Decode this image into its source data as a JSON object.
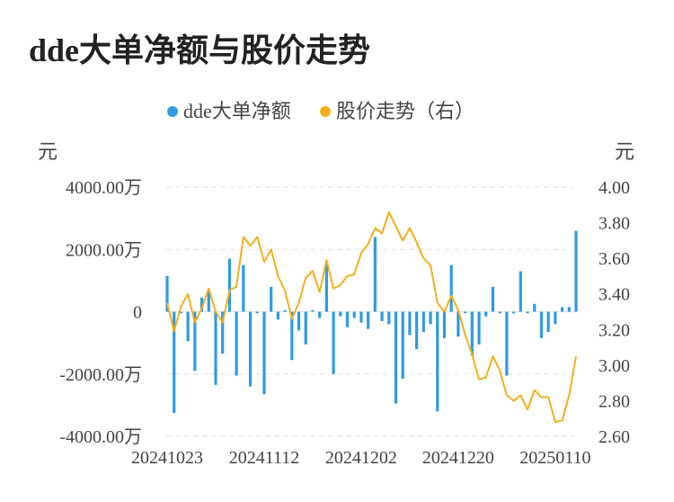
{
  "chart_data": {
    "type": "bar+line",
    "title": "dde大单净额与股价走势",
    "legend": {
      "placement": "top-center",
      "items": [
        {
          "label": "dde大单净额",
          "color": "#2f9be0"
        },
        {
          "label": "股价走势（右）",
          "color": "#f2b01e"
        }
      ]
    },
    "left_unit": "元",
    "right_unit": "元",
    "left_axis": {
      "ylim": [
        -4000,
        4000
      ],
      "ticks": [
        "4000.00万",
        "2000.00万",
        "0",
        "-2000.00万",
        "-4000.00万"
      ],
      "tick_values": [
        4000,
        2000,
        0,
        -2000,
        -4000
      ]
    },
    "right_axis": {
      "ylim": [
        2.6,
        4.0
      ],
      "ticks": [
        "4.00",
        "3.80",
        "3.60",
        "3.40",
        "3.20",
        "3.00",
        "2.80",
        "2.60"
      ],
      "tick_values": [
        4.0,
        3.8,
        3.6,
        3.4,
        3.2,
        3.0,
        2.8,
        2.6
      ]
    },
    "x_tick_labels": [
      "20241023",
      "20241112",
      "20241202",
      "20241220",
      "20250110"
    ],
    "x_tick_index": [
      0,
      14,
      28,
      42,
      56
    ],
    "grid": true,
    "series": [
      {
        "name": "dde大单净额",
        "type": "bar",
        "unit": "万元",
        "values": [
          1150,
          -3250,
          -50,
          -950,
          -1900,
          450,
          650,
          -2350,
          -1350,
          1700,
          -2050,
          1500,
          -2400,
          -50,
          -2650,
          800,
          -250,
          50,
          -1550,
          -600,
          -1050,
          50,
          -200,
          1550,
          -2000,
          -150,
          -500,
          -200,
          -350,
          -550,
          2400,
          -300,
          -400,
          -2950,
          -2150,
          -750,
          -1200,
          -650,
          -400,
          -3200,
          -850,
          1500,
          -800,
          -50,
          -1400,
          -1050,
          -150,
          800,
          -50,
          -2050,
          -50,
          1300,
          -50,
          250,
          -850,
          -650,
          -400,
          150,
          150,
          2600
        ]
      },
      {
        "name": "股价走势（右）",
        "type": "line",
        "unit": "元",
        "values": [
          3.35,
          3.19,
          3.33,
          3.4,
          3.24,
          3.32,
          3.43,
          3.3,
          3.24,
          3.42,
          3.44,
          3.72,
          3.67,
          3.72,
          3.58,
          3.65,
          3.5,
          3.42,
          3.26,
          3.35,
          3.49,
          3.53,
          3.41,
          3.59,
          3.43,
          3.45,
          3.5,
          3.51,
          3.63,
          3.68,
          3.77,
          3.74,
          3.86,
          3.78,
          3.7,
          3.77,
          3.69,
          3.6,
          3.56,
          3.35,
          3.3,
          3.39,
          3.31,
          3.17,
          3.06,
          2.92,
          2.93,
          3.05,
          2.97,
          2.83,
          2.8,
          2.83,
          2.75,
          2.86,
          2.82,
          2.82,
          2.68,
          2.69,
          2.83,
          3.05
        ]
      }
    ]
  }
}
